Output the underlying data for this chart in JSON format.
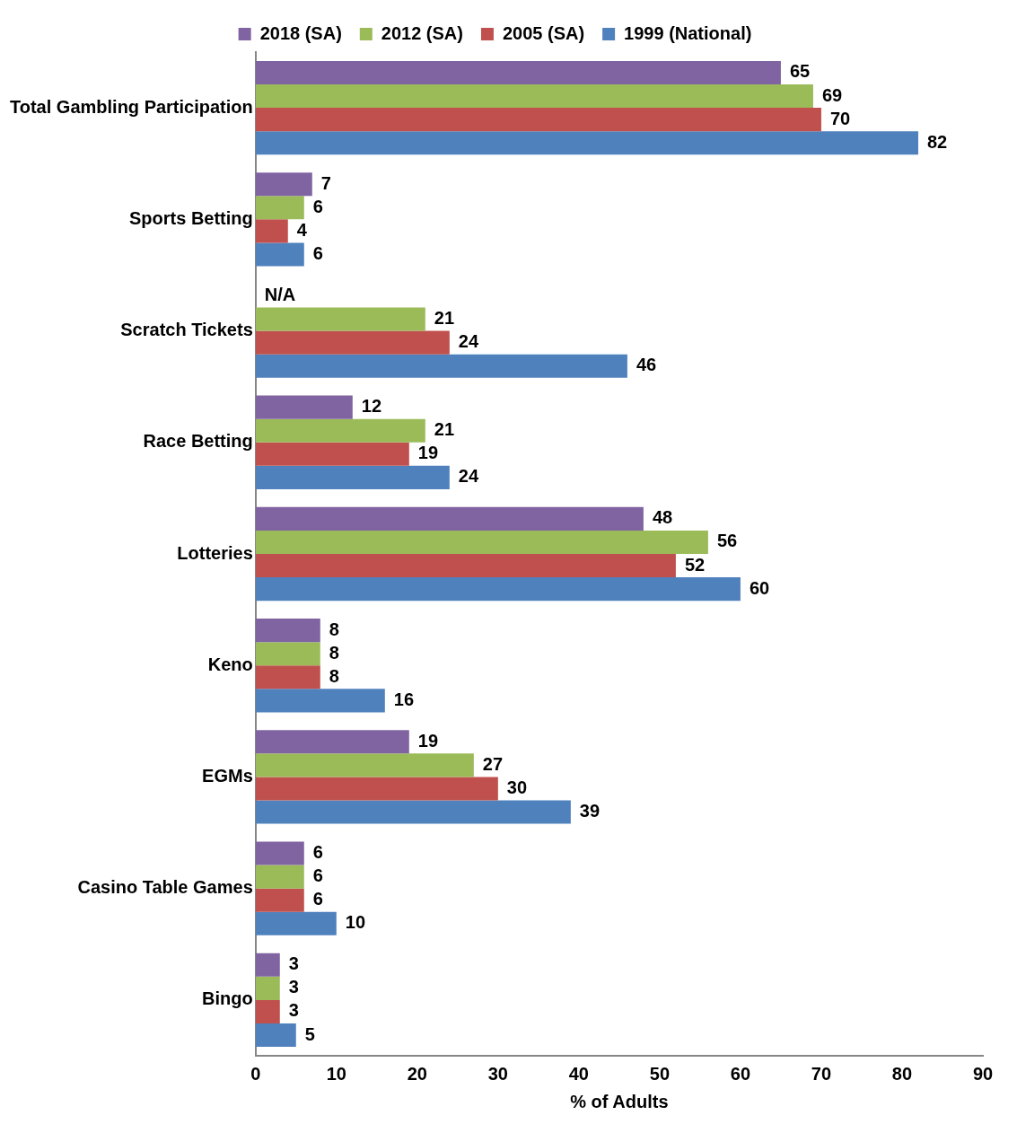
{
  "chart_data": {
    "type": "bar",
    "orientation": "horizontal",
    "xlabel": "% of Adults",
    "categories": [
      "Total Gambling Participation",
      "Sports Betting",
      "Scratch Tickets",
      "Race Betting",
      "Lotteries",
      "Keno",
      "EGMs",
      "Casino Table Games",
      "Bingo"
    ],
    "series": [
      {
        "name": "2018 (SA)",
        "color": "#8064a2",
        "values": [
          65,
          7,
          null,
          12,
          48,
          8,
          19,
          6,
          3
        ],
        "value_labels": [
          "65",
          "7",
          "N/A",
          "12",
          "48",
          "8",
          "19",
          "6",
          "3"
        ]
      },
      {
        "name": "2012 (SA)",
        "color": "#9bbb59",
        "values": [
          69,
          6,
          21,
          21,
          56,
          8,
          27,
          6,
          3
        ],
        "value_labels": [
          "69",
          "6",
          "21",
          "21",
          "56",
          "8",
          "27",
          "6",
          "3"
        ]
      },
      {
        "name": "2005 (SA)",
        "color": "#c0504d",
        "values": [
          70,
          4,
          24,
          19,
          52,
          8,
          30,
          6,
          3
        ],
        "value_labels": [
          "70",
          "4",
          "24",
          "19",
          "52",
          "8",
          "30",
          "6",
          "3"
        ]
      },
      {
        "name": "1999 (National)",
        "color": "#4f81bd",
        "values": [
          82,
          6,
          46,
          24,
          60,
          16,
          39,
          10,
          5
        ],
        "value_labels": [
          "82",
          "6",
          "46",
          "24",
          "60",
          "16",
          "39",
          "10",
          "5"
        ]
      }
    ],
    "xlim": [
      0,
      90
    ],
    "xticks": [
      0,
      10,
      20,
      30,
      40,
      50,
      60,
      70,
      80,
      90
    ],
    "grid": false,
    "legend": "top"
  }
}
